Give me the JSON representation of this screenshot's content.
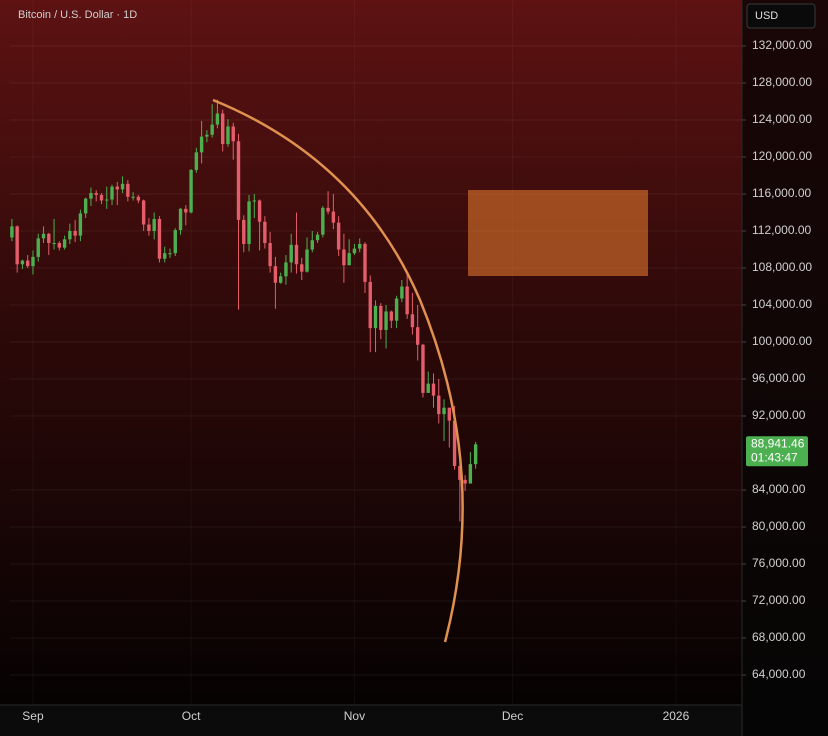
{
  "chart_data": {
    "type": "candlestick",
    "title": "Bitcoin / U.S. Dollar · 1D",
    "currency": "USD",
    "up_color": "#4caf50",
    "down_color": "#e35d6a",
    "xlim": [
      -0.36,
      138.54
    ],
    "xticks": [
      {
        "value": 4,
        "label": "Sep"
      },
      {
        "value": 34,
        "label": "Oct"
      },
      {
        "value": 65,
        "label": "Nov"
      },
      {
        "value": 95,
        "label": "Dec"
      },
      {
        "value": 126,
        "label": "2026"
      }
    ],
    "ylim": [
      60760,
      136970
    ],
    "yticks": [
      {
        "value": 64000,
        "label": "64,000.00"
      },
      {
        "value": 68000,
        "label": "68,000.00"
      },
      {
        "value": 72000,
        "label": "72,000.00"
      },
      {
        "value": 76000,
        "label": "76,000.00"
      },
      {
        "value": 80000,
        "label": "80,000.00"
      },
      {
        "value": 84000,
        "label": "84,000.00"
      },
      {
        "value": 92000,
        "label": "92,000.00"
      },
      {
        "value": 96000,
        "label": "96,000.00"
      },
      {
        "value": 100000,
        "label": "100,000.00"
      },
      {
        "value": 104000,
        "label": "104,000.00"
      },
      {
        "value": 108000,
        "label": "108,000.00"
      },
      {
        "value": 112000,
        "label": "112,000.00"
      },
      {
        "value": 116000,
        "label": "116,000.00"
      },
      {
        "value": 120000,
        "label": "120,000.00"
      },
      {
        "value": 124000,
        "label": "124,000.00"
      },
      {
        "value": 128000,
        "label": "128,000.00"
      },
      {
        "value": 132000,
        "label": "132,000.00"
      }
    ],
    "grid": true,
    "series": [
      {
        "open": [
          111300,
          112500,
          108400,
          108800,
          108200,
          109200,
          111200,
          111700,
          110700,
          110700,
          110200,
          111100,
          112000,
          111500,
          113900,
          115500,
          116100,
          115900,
          115300,
          115400,
          116800,
          116500,
          117100,
          115700,
          115700,
          115300,
          112700,
          112000,
          113300,
          109000,
          109600,
          109600,
          112100,
          114400,
          114000,
          118600,
          120500,
          122200,
          122400,
          123500,
          124700,
          121400,
          123300,
          121700,
          113200,
          110600,
          115200,
          115300,
          113000,
          110700,
          108200,
          106400,
          107100,
          108600,
          110500,
          108400,
          107600,
          110000,
          111000,
          111600,
          114500,
          114100,
          112900,
          110000,
          108300,
          109600,
          110100,
          110600,
          106500,
          101500,
          103900,
          101300,
          103300,
          102300,
          104700,
          106000,
          103000,
          101600,
          99700,
          94500,
          95500,
          94200,
          92200,
          92900,
          91500,
          86600,
          85100,
          84700,
          86800
        ],
        "high": [
          113300,
          112600,
          108900,
          109400,
          109900,
          111700,
          112500,
          111800,
          113300,
          110900,
          111500,
          112800,
          113200,
          114300,
          115600,
          116700,
          116400,
          116100,
          116800,
          117000,
          117300,
          117900,
          117500,
          116200,
          115900,
          115400,
          113400,
          114000,
          113600,
          110300,
          110100,
          112300,
          114500,
          114800,
          118700,
          121000,
          123900,
          122900,
          125700,
          126200,
          125100,
          124100,
          123700,
          122500,
          113700,
          115900,
          116000,
          115400,
          113600,
          111900,
          109200,
          107500,
          109400,
          111700,
          114000,
          109100,
          111300,
          112000,
          111900,
          114700,
          116300,
          116000,
          113600,
          111700,
          111100,
          110600,
          111200,
          110800,
          107200,
          104500,
          104200,
          104000,
          103400,
          105000,
          106700,
          107500,
          105300,
          104000,
          99800,
          96800,
          96600,
          96000,
          93800,
          92900,
          93100,
          87500,
          85600,
          88100,
          89200
        ],
        "low": [
          110900,
          107500,
          107900,
          108000,
          107300,
          108700,
          110700,
          109400,
          110000,
          109900,
          110000,
          110600,
          110800,
          110900,
          113400,
          114700,
          115200,
          114900,
          114400,
          114800,
          114800,
          116100,
          115200,
          115300,
          115000,
          112000,
          111500,
          111100,
          108600,
          108600,
          109100,
          109300,
          111600,
          112600,
          113900,
          118300,
          119300,
          121600,
          122100,
          123100,
          120600,
          121100,
          119700,
          103500,
          109700,
          109800,
          113400,
          109900,
          110100,
          107500,
          103600,
          106300,
          106200,
          107500,
          107400,
          106700,
          107500,
          109700,
          110700,
          111300,
          113800,
          112200,
          109300,
          106400,
          108300,
          109400,
          109700,
          105300,
          98900,
          98900,
          100300,
          99300,
          101500,
          101500,
          104300,
          102500,
          100800,
          98000,
          94000,
          94500,
          92900,
          91200,
          89300,
          88600,
          86200,
          80600,
          83900,
          84700,
          86300
        ],
        "close": [
          112500,
          108400,
          108800,
          108200,
          109200,
          111200,
          111700,
          110700,
          110700,
          110200,
          111100,
          112000,
          111500,
          113900,
          115500,
          116100,
          115900,
          115300,
          115400,
          116800,
          116500,
          117100,
          115700,
          115700,
          115300,
          112700,
          112000,
          113300,
          109000,
          109600,
          109600,
          112100,
          114400,
          114000,
          118600,
          120500,
          122200,
          122400,
          123500,
          124700,
          121400,
          123300,
          121700,
          113200,
          110600,
          115200,
          115300,
          113000,
          110700,
          108200,
          106400,
          107100,
          108600,
          110500,
          108400,
          107600,
          110000,
          111000,
          111600,
          114500,
          114100,
          112900,
          110000,
          108300,
          109600,
          110100,
          110600,
          106500,
          101500,
          103900,
          101300,
          103300,
          102300,
          104700,
          106000,
          103000,
          101600,
          99700,
          94500,
          95500,
          94200,
          92200,
          92900,
          91500,
          86600,
          85100,
          84700,
          86800,
          88941.46
        ]
      }
    ],
    "last_label": "88,941.46",
    "countdown": "01:43:47"
  }
}
